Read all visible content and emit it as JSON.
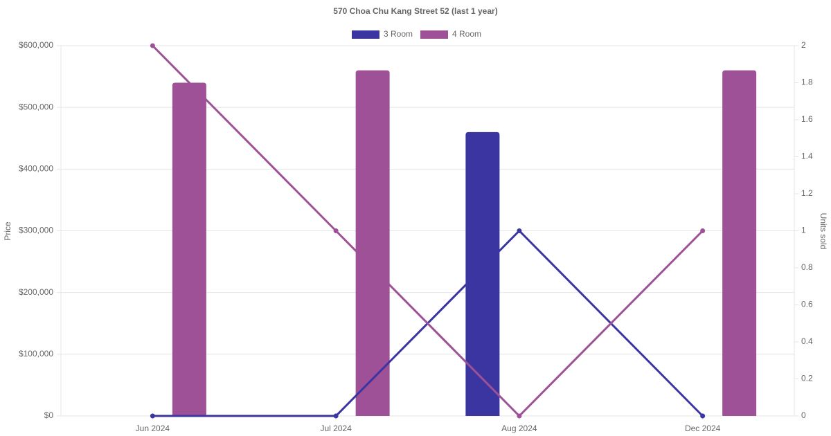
{
  "chart_data": {
    "type": "bar-line",
    "title": "570 Choa Chu Kang Street 52 (last 1 year)",
    "categories": [
      "Jun 2024",
      "Jul 2024",
      "Aug 2024",
      "Dec 2024"
    ],
    "series": [
      {
        "name": "3 Room",
        "type": "bar",
        "color": "#3a35a0",
        "values": [
          null,
          null,
          460000,
          null
        ]
      },
      {
        "name": "4 Room",
        "type": "bar",
        "color": "#9e5196",
        "values": [
          540000,
          560000,
          null,
          560000
        ]
      },
      {
        "type": "line",
        "axis": "y2",
        "color": "#3a35a0",
        "values": [
          0,
          0,
          1,
          0
        ]
      },
      {
        "type": "line",
        "axis": "y2",
        "color": "#9e5196",
        "values": [
          2,
          1,
          0,
          1
        ]
      }
    ],
    "ylabel": "Price",
    "y2label": "Units sold",
    "ylim": [
      0,
      600000
    ],
    "yticks": [
      {
        "value": 0,
        "label": "$0"
      },
      {
        "value": 100000,
        "label": "$100,000"
      },
      {
        "value": 200000,
        "label": "$200,000"
      },
      {
        "value": 300000,
        "label": "$300,000"
      },
      {
        "value": 400000,
        "label": "$400,000"
      },
      {
        "value": 500000,
        "label": "$500,000"
      },
      {
        "value": 600000,
        "label": "$600,000"
      }
    ],
    "y2lim": [
      0,
      2
    ],
    "y2ticks": [
      0,
      0.2,
      0.4,
      0.6,
      0.8,
      1,
      1.2,
      1.4,
      1.6,
      1.8,
      2
    ],
    "grid": true,
    "legend": "top"
  }
}
